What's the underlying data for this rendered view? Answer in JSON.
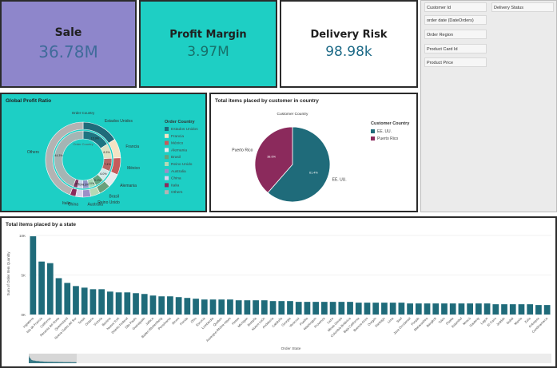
{
  "kpis": {
    "sale": {
      "label": "Sale",
      "value": "36.78M"
    },
    "profit": {
      "label": "Profit Margin",
      "value": "3.97M"
    },
    "risk": {
      "label": "Delivery Risk",
      "value": "98.98k"
    }
  },
  "filters": {
    "customer_id": "Customer Id",
    "delivery_status": "Delivery Status",
    "order_date": "order date (DateOrders)",
    "order_region": "Order Region",
    "product_card_id": "Product Card Id",
    "product_price": "Product Price"
  },
  "colors": {
    "teal_card": "#1dcfc5",
    "purple_card": "#8e86cb",
    "bar": "#1f6b7a",
    "puerto_rico": "#8b2a5c",
    "ee_uu": "#1f6b7a"
  },
  "chart_data": [
    {
      "type": "pie",
      "title": "Global Profit Ratio",
      "subtitle": "Order Country",
      "legend_title": "Order Country",
      "inner_ring_label": "Order Country",
      "slices": [
        {
          "label": "Estados Unidos",
          "value": 15.9,
          "color": "#1f6b7a"
        },
        {
          "label": "Francia",
          "value": 8.3,
          "color": "#f3e3c3"
        },
        {
          "label": "México",
          "value": 7.4,
          "color": "#c65b5b"
        },
        {
          "label": "Alemania",
          "value": 6.0,
          "color": "#e8eaec"
        },
        {
          "label": "Brasil",
          "value": 5.1,
          "color": "#6aa07a"
        },
        {
          "label": "Reino Unido",
          "value": 4.0,
          "color": "#b5d9b5"
        },
        {
          "label": "Australia",
          "value": 3.5,
          "color": "#9d8ec7"
        },
        {
          "label": "China",
          "value": 3.0,
          "color": "#d9d3ec"
        },
        {
          "label": "Italia",
          "value": 2.5,
          "color": "#8b2a5c"
        },
        {
          "label": "Others",
          "value": 44.3,
          "color": "#b3b3b3"
        }
      ],
      "pct_labels": [
        "15.9%",
        "8.3%",
        "7.4%",
        "6.0%",
        "5.1%",
        "4.0%",
        "3.5%",
        "3.0%",
        "2.5%",
        "44.3%"
      ]
    },
    {
      "type": "pie",
      "title": "Total items placed by customer in country",
      "subtitle": "Customer Country",
      "legend_title": "Customer Country",
      "slices": [
        {
          "label": "EE. UU.",
          "value": 61.4,
          "color": "#1f6b7a",
          "pct": "61.4%"
        },
        {
          "label": "Puerto Rico",
          "value": 38.6,
          "color": "#8b2a5c",
          "pct": "38.6%"
        }
      ]
    },
    {
      "type": "bar",
      "title": "Total items placed by a state",
      "xlabel": "Order State",
      "ylabel": "Sum of Order Item Quantity",
      "ylim": [
        0,
        10000
      ],
      "yticks": [
        "10K",
        "5K",
        "0K"
      ],
      "categories": [
        "Inglaterra",
        "Isla de Francia",
        "California",
        "Renania del Norte",
        "Queensland",
        "Nueva Gales del Sur",
        "Texas",
        "Ontario",
        "Victoria",
        "Baviera",
        "Nueva York",
        "Distrito Federal",
        "São Paulo",
        "Guanajuato",
        "Jalisco",
        "Baden-Wurtemberg",
        "Pensilvania",
        "Illinois",
        "Florida",
        "Ohio",
        "Escocia",
        "Lombardía",
        "Quebec",
        "Auvergne-Rhône-Alpes",
        "Hesse",
        "Michigan",
        "Bretaña",
        "Nuevo León",
        "Andalucía",
        "Cataluña",
        "Georgia",
        "Veracruz",
        "Puebla",
        "Washington",
        "Provenza",
        "Lazio",
        "Minas Gerais",
        "Columbia Británica",
        "Baja California",
        "Buenos Aires",
        "Oregón",
        "Santiago",
        "Lima",
        "Seúl",
        "Java Occidental",
        "Punjab",
        "Maharashtra",
        "Bangkok",
        "Tokio",
        "Osaka",
        "Estambul",
        "Moscú",
        "Gauteng",
        "Lagos",
        "El Cairo",
        "Jeddah",
        "Dubái",
        "Manila",
        "Zulia",
        "Antioquia",
        "Cundinamarca"
      ],
      "values": [
        9900,
        6700,
        6500,
        4600,
        4000,
        3600,
        3400,
        3200,
        3200,
        2900,
        2800,
        2800,
        2700,
        2600,
        2400,
        2300,
        2300,
        2200,
        2100,
        2000,
        1900,
        1900,
        1900,
        1900,
        1800,
        1800,
        1800,
        1800,
        1700,
        1700,
        1700,
        1600,
        1600,
        1600,
        1600,
        1600,
        1600,
        1600,
        1500,
        1500,
        1500,
        1500,
        1500,
        1500,
        1400,
        1400,
        1400,
        1400,
        1400,
        1400,
        1400,
        1400,
        1400,
        1400,
        1300,
        1300,
        1300,
        1300,
        1300,
        1200,
        1200
      ]
    }
  ]
}
